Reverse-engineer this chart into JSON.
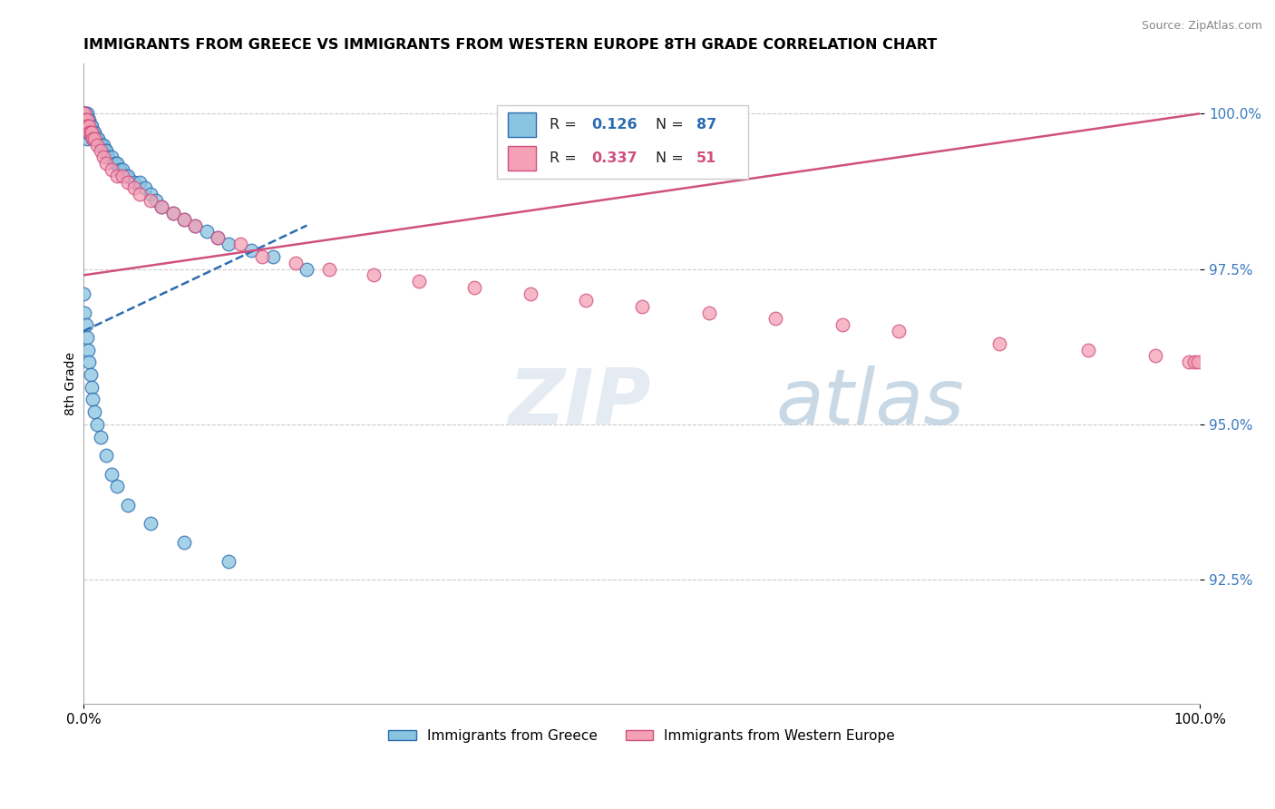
{
  "title": "IMMIGRANTS FROM GREECE VS IMMIGRANTS FROM WESTERN EUROPE 8TH GRADE CORRELATION CHART",
  "source": "Source: ZipAtlas.com",
  "xlabel_legend_1": "Immigrants from Greece",
  "xlabel_legend_2": "Immigrants from Western Europe",
  "ylabel": "8th Grade",
  "r_blue": 0.126,
  "n_blue": 87,
  "r_pink": 0.337,
  "n_pink": 51,
  "xlim": [
    0.0,
    1.0
  ],
  "ylim": [
    0.905,
    1.008
  ],
  "yticks": [
    0.925,
    0.95,
    0.975,
    1.0
  ],
  "ytick_labels": [
    "92.5%",
    "95.0%",
    "97.5%",
    "100.0%"
  ],
  "xtick_labels": [
    "0.0%",
    "100.0%"
  ],
  "xticks": [
    0.0,
    1.0
  ],
  "color_blue": "#89c4e1",
  "color_pink": "#f4a0b5",
  "color_blue_line": "#2b6cb0",
  "color_pink_line": "#d05080",
  "watermark_zip": "ZIP",
  "watermark_atlas": "atlas",
  "blue_scatter_x": [
    0.0,
    0.0,
    0.0,
    0.001,
    0.001,
    0.001,
    0.001,
    0.001,
    0.001,
    0.002,
    0.002,
    0.002,
    0.002,
    0.002,
    0.003,
    0.003,
    0.003,
    0.003,
    0.003,
    0.003,
    0.004,
    0.004,
    0.004,
    0.004,
    0.005,
    0.005,
    0.005,
    0.006,
    0.006,
    0.007,
    0.007,
    0.008,
    0.008,
    0.009,
    0.009,
    0.01,
    0.01,
    0.011,
    0.012,
    0.013,
    0.015,
    0.016,
    0.018,
    0.019,
    0.02,
    0.022,
    0.025,
    0.028,
    0.03,
    0.032,
    0.035,
    0.038,
    0.04,
    0.045,
    0.05,
    0.055,
    0.06,
    0.065,
    0.07,
    0.08,
    0.09,
    0.1,
    0.11,
    0.12,
    0.13,
    0.15,
    0.17,
    0.2,
    0.0,
    0.001,
    0.002,
    0.003,
    0.004,
    0.005,
    0.006,
    0.007,
    0.008,
    0.01,
    0.012,
    0.015,
    0.02,
    0.025,
    0.03,
    0.04,
    0.06,
    0.09,
    0.13
  ],
  "blue_scatter_y": [
    1.0,
    1.0,
    0.999,
    1.0,
    1.0,
    0.999,
    0.999,
    0.998,
    0.998,
    1.0,
    0.999,
    0.999,
    0.998,
    0.997,
    1.0,
    0.999,
    0.999,
    0.998,
    0.997,
    0.996,
    0.999,
    0.999,
    0.998,
    0.997,
    0.999,
    0.998,
    0.997,
    0.998,
    0.997,
    0.998,
    0.997,
    0.997,
    0.996,
    0.997,
    0.996,
    0.997,
    0.996,
    0.996,
    0.996,
    0.996,
    0.995,
    0.995,
    0.995,
    0.994,
    0.994,
    0.993,
    0.993,
    0.992,
    0.992,
    0.991,
    0.991,
    0.99,
    0.99,
    0.989,
    0.989,
    0.988,
    0.987,
    0.986,
    0.985,
    0.984,
    0.983,
    0.982,
    0.981,
    0.98,
    0.979,
    0.978,
    0.977,
    0.975,
    0.971,
    0.968,
    0.966,
    0.964,
    0.962,
    0.96,
    0.958,
    0.956,
    0.954,
    0.952,
    0.95,
    0.948,
    0.945,
    0.942,
    0.94,
    0.937,
    0.934,
    0.931,
    0.928
  ],
  "pink_scatter_x": [
    0.0,
    0.0,
    0.001,
    0.001,
    0.002,
    0.002,
    0.003,
    0.003,
    0.004,
    0.005,
    0.005,
    0.006,
    0.007,
    0.008,
    0.01,
    0.012,
    0.015,
    0.018,
    0.02,
    0.025,
    0.03,
    0.035,
    0.04,
    0.045,
    0.05,
    0.06,
    0.07,
    0.08,
    0.09,
    0.1,
    0.12,
    0.14,
    0.16,
    0.19,
    0.22,
    0.26,
    0.3,
    0.35,
    0.4,
    0.45,
    0.5,
    0.56,
    0.62,
    0.68,
    0.73,
    0.82,
    0.9,
    0.96,
    0.99,
    0.995,
    0.998
  ],
  "pink_scatter_y": [
    1.0,
    0.999,
    1.0,
    0.999,
    0.999,
    0.998,
    0.999,
    0.998,
    0.998,
    0.998,
    0.997,
    0.997,
    0.997,
    0.996,
    0.996,
    0.995,
    0.994,
    0.993,
    0.992,
    0.991,
    0.99,
    0.99,
    0.989,
    0.988,
    0.987,
    0.986,
    0.985,
    0.984,
    0.983,
    0.982,
    0.98,
    0.979,
    0.977,
    0.976,
    0.975,
    0.974,
    0.973,
    0.972,
    0.971,
    0.97,
    0.969,
    0.968,
    0.967,
    0.966,
    0.965,
    0.963,
    0.962,
    0.961,
    0.96,
    0.96,
    0.96
  ],
  "blue_trend_x": [
    0.0,
    0.2
  ],
  "blue_trend_y": [
    0.965,
    0.982
  ],
  "pink_trend_x": [
    0.0,
    1.0
  ],
  "pink_trend_y": [
    0.974,
    1.0
  ]
}
